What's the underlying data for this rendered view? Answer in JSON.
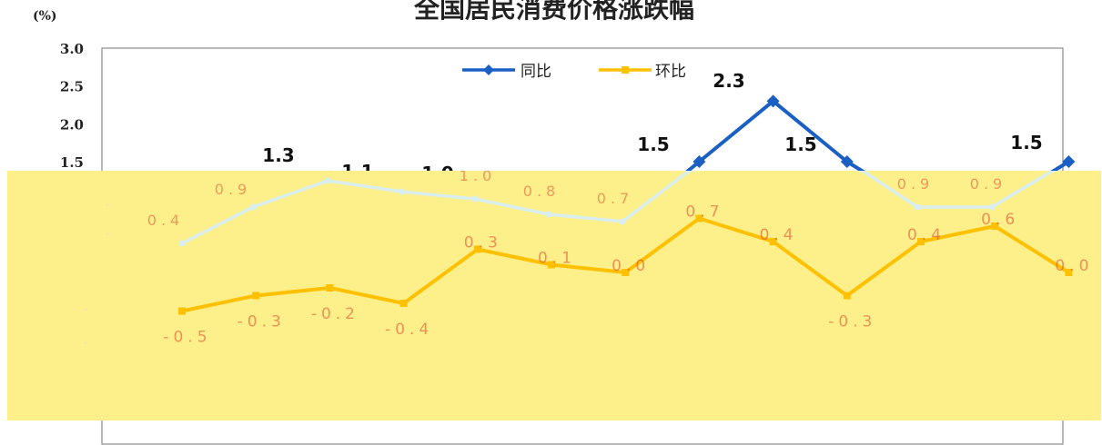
{
  "chart_data": {
    "type": "line",
    "title": "全国居民消费价格涨跌幅",
    "y_unit": "(%)",
    "ylim": [
      -1.5,
      3.0
    ],
    "y_ticks": [
      "3.0",
      "2.5",
      "2.0",
      "1.5"
    ],
    "legend_position": "top-center",
    "grid": false,
    "series": [
      {
        "name": "同比",
        "color": "#1a5fc4",
        "values": [
          0.4,
          0.9,
          1.3,
          1.1,
          1.0,
          0.8,
          0.7,
          1.5,
          2.3,
          1.5,
          0.9,
          0.9,
          1.5
        ],
        "labels": [
          "0.4",
          "0.9",
          "1.3",
          "1.1",
          "1.0",
          "0.8",
          "0.7",
          "1.5",
          "2.3",
          "1.5",
          "0.9",
          "0.9",
          "1.5"
        ]
      },
      {
        "name": "环比",
        "color": "#ffc000",
        "values": [
          -0.5,
          -0.3,
          -0.2,
          -0.4,
          0.3,
          0.1,
          0.0,
          0.7,
          0.4,
          -0.3,
          0.4,
          0.6,
          0.0
        ],
        "labels": [
          "-0.5",
          "-0.3",
          "-0.2",
          "-0.4",
          "0.3",
          "0.1",
          "0.0",
          "0.7",
          "0.4",
          "-0.3",
          "0.4",
          "0.6",
          "0.0"
        ]
      }
    ],
    "visible_value_labels": {
      "top_partial": "0.9"
    }
  },
  "colors": {
    "overlay": "#fdf08a",
    "overlay_line": "#d8eef0",
    "overlay_label": "#e0442a"
  }
}
